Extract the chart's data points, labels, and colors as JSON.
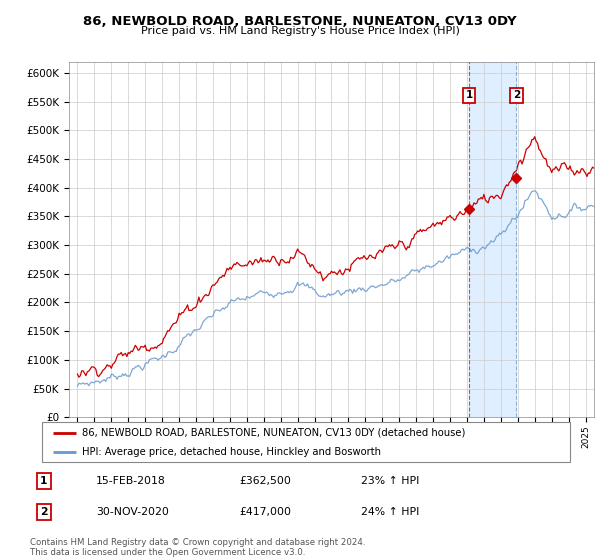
{
  "title": "86, NEWBOLD ROAD, BARLESTONE, NUNEATON, CV13 0DY",
  "subtitle": "Price paid vs. HM Land Registry's House Price Index (HPI)",
  "legend_line1": "86, NEWBOLD ROAD, BARLESTONE, NUNEATON, CV13 0DY (detached house)",
  "legend_line2": "HPI: Average price, detached house, Hinckley and Bosworth",
  "footnote": "Contains HM Land Registry data © Crown copyright and database right 2024.\nThis data is licensed under the Open Government Licence v3.0.",
  "transaction1_date": "15-FEB-2018",
  "transaction1_price": "£362,500",
  "transaction1_hpi": "23% ↑ HPI",
  "transaction2_date": "30-NOV-2020",
  "transaction2_price": "£417,000",
  "transaction2_hpi": "24% ↑ HPI",
  "red_color": "#cc0000",
  "blue_color": "#6699cc",
  "shaded_color": "#ddeeff",
  "marker1_x": 2018.12,
  "marker1_y": 362500,
  "marker2_x": 2020.92,
  "marker2_y": 417000,
  "vline1_x": 2018.12,
  "vline2_x": 2020.92,
  "ylim_min": 0,
  "ylim_max": 620000,
  "xlim_min": 1994.5,
  "xlim_max": 2025.5,
  "yticks": [
    0,
    50000,
    100000,
    150000,
    200000,
    250000,
    300000,
    350000,
    400000,
    450000,
    500000,
    550000,
    600000
  ],
  "ytick_labels": [
    "£0",
    "£50K",
    "£100K",
    "£150K",
    "£200K",
    "£250K",
    "£300K",
    "£350K",
    "£400K",
    "£450K",
    "£500K",
    "£550K",
    "£600K"
  ],
  "xticks": [
    1995,
    1996,
    1997,
    1998,
    1999,
    2000,
    2001,
    2002,
    2003,
    2004,
    2005,
    2006,
    2007,
    2008,
    2009,
    2010,
    2011,
    2012,
    2013,
    2014,
    2015,
    2016,
    2017,
    2018,
    2019,
    2020,
    2021,
    2022,
    2023,
    2024,
    2025
  ],
  "fig_width": 6.0,
  "fig_height": 5.6,
  "dpi": 100
}
